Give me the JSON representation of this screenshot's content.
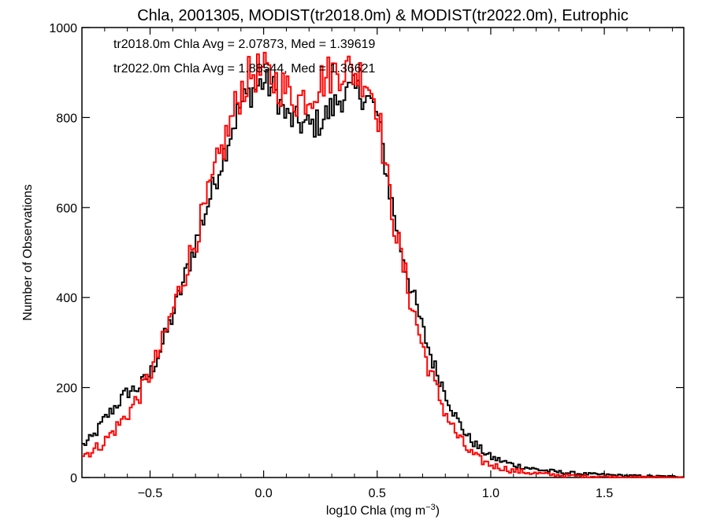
{
  "chart_data": {
    "type": "histogram",
    "title": "Chla, 2001305, MODIST(tr2018.0m) & MODIST(tr2022.0m), Eutrophic",
    "xlabel_main": "log10 Chla (mg m",
    "xlabel_sup": "−3",
    "xlabel_close": ")",
    "ylabel": "Number of Observations",
    "xlim": [
      -0.8,
      1.85
    ],
    "ylim": [
      0,
      1000
    ],
    "x_ticks": [
      {
        "value": -0.5,
        "label": "−0.5"
      },
      {
        "value": 0.0,
        "label": "0.0"
      },
      {
        "value": 0.5,
        "label": "0.5"
      },
      {
        "value": 1.0,
        "label": "1.0"
      },
      {
        "value": 1.5,
        "label": "1.5"
      }
    ],
    "y_ticks": [
      {
        "value": 0,
        "label": "0"
      },
      {
        "value": 200,
        "label": "200"
      },
      {
        "value": 400,
        "label": "400"
      },
      {
        "value": 600,
        "label": "600"
      },
      {
        "value": 800,
        "label": "800"
      },
      {
        "value": 1000,
        "label": "1000"
      }
    ],
    "bin_width": 0.01,
    "stats": [
      {
        "text": "tr2018.0m Chla Avg = 2.07873, Med = 1.39619",
        "color": "#000000"
      },
      {
        "text": "tr2022.0m Chla Avg = 1.88544, Med = 1.36621",
        "color": "#ff0000"
      }
    ],
    "series": [
      {
        "color": "#000000",
        "x": [
          -0.8,
          -0.75,
          -0.7,
          -0.65,
          -0.6,
          -0.55,
          -0.5,
          -0.45,
          -0.4,
          -0.35,
          -0.3,
          -0.25,
          -0.2,
          -0.15,
          -0.1,
          -0.05,
          0.0,
          0.05,
          0.1,
          0.15,
          0.2,
          0.25,
          0.3,
          0.35,
          0.4,
          0.45,
          0.5,
          0.55,
          0.6,
          0.65,
          0.7,
          0.75,
          0.8,
          0.85,
          0.9,
          0.95,
          1.0,
          1.1,
          1.2,
          1.3,
          1.4,
          1.5,
          1.6,
          1.7,
          1.85
        ],
        "y": [
          70,
          90,
          130,
          160,
          190,
          200,
          230,
          290,
          360,
          440,
          520,
          600,
          680,
          760,
          830,
          860,
          880,
          860,
          800,
          790,
          780,
          790,
          820,
          850,
          860,
          850,
          810,
          650,
          520,
          420,
          330,
          250,
          190,
          130,
          90,
          65,
          45,
          28,
          18,
          12,
          8,
          6,
          4,
          3,
          2
        ]
      },
      {
        "color": "#ff0000",
        "x": [
          -0.8,
          -0.75,
          -0.7,
          -0.65,
          -0.6,
          -0.55,
          -0.5,
          -0.45,
          -0.4,
          -0.35,
          -0.3,
          -0.25,
          -0.2,
          -0.15,
          -0.1,
          -0.05,
          0.0,
          0.05,
          0.1,
          0.15,
          0.2,
          0.25,
          0.3,
          0.35,
          0.4,
          0.45,
          0.5,
          0.55,
          0.6,
          0.65,
          0.7,
          0.75,
          0.8,
          0.85,
          0.9,
          0.95,
          1.0,
          1.1,
          1.2,
          1.3,
          1.4,
          1.5,
          1.6,
          1.7,
          1.85
        ],
        "y": [
          50,
          60,
          80,
          110,
          140,
          180,
          230,
          290,
          370,
          450,
          530,
          610,
          700,
          780,
          860,
          900,
          900,
          880,
          860,
          840,
          850,
          880,
          900,
          910,
          900,
          890,
          830,
          640,
          500,
          390,
          290,
          210,
          145,
          95,
          60,
          40,
          28,
          15,
          9,
          5,
          3,
          2,
          1,
          1,
          0
        ]
      }
    ]
  }
}
